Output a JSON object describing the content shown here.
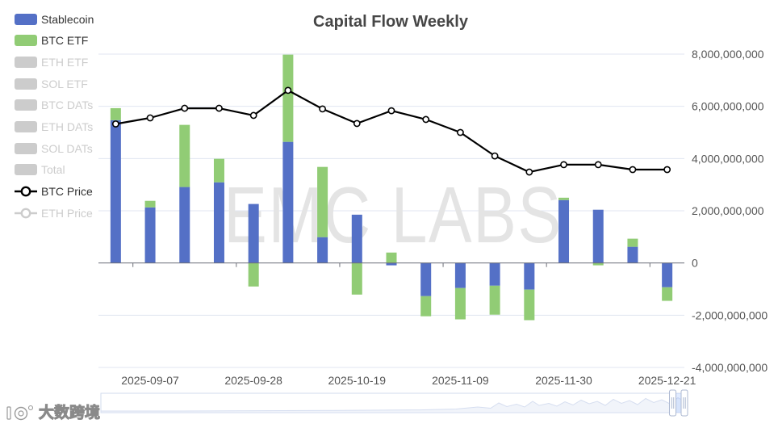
{
  "chart_data": {
    "type": "bar",
    "title": "Capital Flow Weekly",
    "stacked": true,
    "categories": [
      "",
      "2025-09-07",
      "",
      "",
      "2025-09-28",
      "",
      "",
      "2025-10-19",
      "",
      "",
      "2025-11-09",
      "",
      "",
      "2025-11-30",
      "",
      "",
      "2025-12-21"
    ],
    "y_axis_position": "right",
    "ylim": [
      -4000000000,
      8000000000
    ],
    "y_ticks": [
      {
        "value": 8000000000,
        "label": "8,000,000,000"
      },
      {
        "value": 6000000000,
        "label": "6,000,000,000"
      },
      {
        "value": 4000000000,
        "label": "4,000,000,000"
      },
      {
        "value": 2000000000,
        "label": "2,000,000,000"
      },
      {
        "value": 0,
        "label": "0"
      },
      {
        "value": -2000000000,
        "label": "-2,000,000,000"
      },
      {
        "value": -4000000000,
        "label": "-4,000,000,000"
      }
    ],
    "y2lim": [
      0,
      140000
    ],
    "grid": "horizontal",
    "legend_position": "left",
    "legend_text_color": "#333333",
    "legend_inactive_color": "#cccccc",
    "series": [
      {
        "name": "Stablecoin",
        "type": "bar",
        "visible": true,
        "color": "#5470C6",
        "values": [
          5470000000,
          2130000000,
          2910000000,
          3090000000,
          2260000000,
          4640000000,
          990000000,
          1850000000,
          -90000000,
          -1270000000,
          -960000000,
          -870000000,
          -1020000000,
          2410000000,
          2040000000,
          620000000,
          -930000000
        ]
      },
      {
        "name": "BTC ETF",
        "type": "bar",
        "visible": true,
        "color": "#91CC75",
        "values": [
          460000000,
          250000000,
          2380000000,
          900000000,
          -900000000,
          3340000000,
          2690000000,
          -1210000000,
          400000000,
          -770000000,
          -1200000000,
          -1110000000,
          -1170000000,
          90000000,
          -90000000,
          310000000,
          -520000000
        ]
      },
      {
        "name": "ETH ETF",
        "type": "bar",
        "visible": false
      },
      {
        "name": "SOL ETF",
        "type": "bar",
        "visible": false
      },
      {
        "name": "BTC DATs",
        "type": "bar",
        "visible": false
      },
      {
        "name": "ETH DATs",
        "type": "bar",
        "visible": false
      },
      {
        "name": "SOL DATs",
        "type": "bar",
        "visible": false
      },
      {
        "name": "Total",
        "type": "bar",
        "visible": false
      },
      {
        "name": "BTC Price",
        "type": "line",
        "visible": true,
        "axis": "secondary",
        "color": "#000000",
        "values": [
          108800,
          111500,
          115800,
          115800,
          112600,
          123800,
          115500,
          109000,
          114700,
          110800,
          105000,
          94500,
          87300,
          90600,
          90600,
          88400,
          88400
        ]
      },
      {
        "name": "ETH Price",
        "type": "line",
        "visible": false
      }
    ]
  },
  "watermark": "EMC LABS",
  "data_zoom": {
    "start_percent": 98,
    "end_percent": 100
  },
  "site_badge": {
    "text": "大数跨境",
    "icon": "site-logo-icon"
  }
}
